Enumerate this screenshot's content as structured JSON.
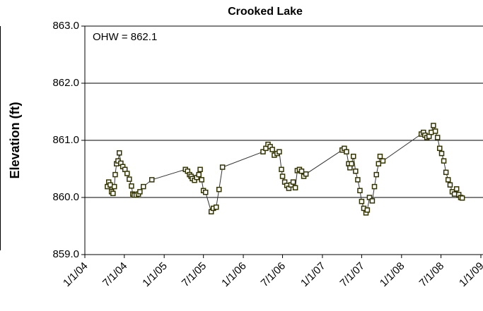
{
  "chart_data": {
    "type": "line",
    "title": "Crooked Lake",
    "y_label": "Elevation (ft)",
    "annotation": "OHW = 862.1",
    "x": [
      "2004-04-14",
      "2004-04-20",
      "2004-04-27",
      "2004-05-03",
      "2004-05-10",
      "2004-05-16",
      "2004-05-20",
      "2004-05-26",
      "2004-06-02",
      "2004-06-08",
      "2004-06-15",
      "2004-06-24",
      "2004-07-04",
      "2004-07-14",
      "2004-07-24",
      "2004-08-03",
      "2004-08-09",
      "2004-08-16",
      "2004-08-25",
      "2004-09-04",
      "2004-09-11",
      "2004-09-27",
      "2004-11-05",
      "2005-04-09",
      "2005-04-19",
      "2005-04-28",
      "2005-05-05",
      "2005-05-11",
      "2005-05-21",
      "2005-05-31",
      "2005-06-10",
      "2005-06-16",
      "2005-06-23",
      "2005-07-01",
      "2005-07-11",
      "2005-08-06",
      "2005-08-16",
      "2005-08-29",
      "2005-09-11",
      "2005-09-27",
      "2006-04-02",
      "2006-04-15",
      "2006-04-25",
      "2006-05-05",
      "2006-05-15",
      "2006-05-24",
      "2006-06-06",
      "2006-06-16",
      "2006-06-26",
      "2006-07-01",
      "2006-07-11",
      "2006-07-21",
      "2006-07-30",
      "2006-08-09",
      "2006-08-19",
      "2006-08-29",
      "2006-09-07",
      "2006-09-17",
      "2006-09-27",
      "2006-10-07",
      "2006-10-17",
      "2007-04-02",
      "2007-04-12",
      "2007-04-22",
      "2007-05-02",
      "2007-05-08",
      "2007-05-15",
      "2007-05-24",
      "2007-06-03",
      "2007-06-13",
      "2007-06-23",
      "2007-07-01",
      "2007-07-11",
      "2007-07-21",
      "2007-07-27",
      "2007-08-06",
      "2007-08-19",
      "2007-08-29",
      "2007-09-07",
      "2007-09-17",
      "2007-09-24",
      "2007-10-07",
      "2008-04-01",
      "2008-04-11",
      "2008-04-18",
      "2008-04-27",
      "2008-05-07",
      "2008-05-17",
      "2008-05-27",
      "2008-06-05",
      "2008-06-15",
      "2008-06-25",
      "2008-07-04",
      "2008-07-14",
      "2008-07-24",
      "2008-08-03",
      "2008-08-12",
      "2008-08-22",
      "2008-09-01",
      "2008-09-11",
      "2008-09-21",
      "2008-09-30",
      "2008-10-07"
    ],
    "series": [
      {
        "name": "Crooked Lake",
        "color": "#333300",
        "values": [
          860.19,
          860.27,
          860.22,
          860.1,
          860.07,
          860.19,
          860.4,
          860.59,
          860.64,
          860.78,
          860.6,
          860.54,
          860.49,
          860.42,
          860.32,
          860.2,
          860.06,
          860.04,
          860.04,
          860.06,
          860.1,
          860.19,
          860.31,
          860.49,
          860.46,
          860.4,
          860.37,
          860.33,
          860.3,
          860.35,
          860.4,
          860.49,
          860.31,
          860.12,
          860.09,
          859.75,
          859.81,
          859.83,
          860.14,
          860.53,
          860.8,
          860.86,
          860.93,
          860.89,
          860.84,
          860.74,
          860.77,
          860.8,
          860.49,
          860.37,
          860.27,
          860.21,
          860.16,
          860.22,
          860.27,
          860.17,
          860.47,
          860.49,
          860.46,
          860.37,
          860.41,
          860.83,
          860.86,
          860.8,
          860.59,
          860.52,
          860.59,
          860.72,
          860.46,
          860.31,
          860.12,
          859.93,
          859.81,
          859.73,
          859.78,
          860.0,
          859.94,
          860.19,
          860.4,
          860.59,
          860.72,
          860.64,
          861.11,
          861.14,
          861.09,
          861.05,
          861.07,
          861.14,
          861.26,
          861.16,
          861.05,
          860.86,
          860.77,
          860.64,
          860.44,
          860.31,
          860.22,
          860.1,
          860.06,
          860.15,
          860.05,
          860.0,
          859.99
        ]
      }
    ],
    "xlim": [
      "2004-01-01",
      "2009-01-01"
    ],
    "xticks": [
      {
        "value": "2004-01-01",
        "label": "1/1/04"
      },
      {
        "value": "2004-07-01",
        "label": "7/1/04"
      },
      {
        "value": "2005-01-01",
        "label": "1/1/05"
      },
      {
        "value": "2005-07-01",
        "label": "7/1/05"
      },
      {
        "value": "2006-01-01",
        "label": "1/1/06"
      },
      {
        "value": "2006-07-01",
        "label": "7/1/06"
      },
      {
        "value": "2007-01-01",
        "label": "1/1/07"
      },
      {
        "value": "2007-07-01",
        "label": "7/1/07"
      },
      {
        "value": "2008-01-01",
        "label": "1/1/08"
      },
      {
        "value": "2008-07-01",
        "label": "7/1/08"
      },
      {
        "value": "2009-01-01",
        "label": "1/1/09"
      }
    ],
    "ylim": [
      859,
      863
    ],
    "yticks": [
      {
        "value": 859,
        "label": "859.0"
      },
      {
        "value": 860,
        "label": "860.0"
      },
      {
        "value": 861,
        "label": "861.0"
      },
      {
        "value": 862,
        "label": "862.0"
      },
      {
        "value": 863,
        "label": "863.0"
      }
    ],
    "grid": true
  }
}
